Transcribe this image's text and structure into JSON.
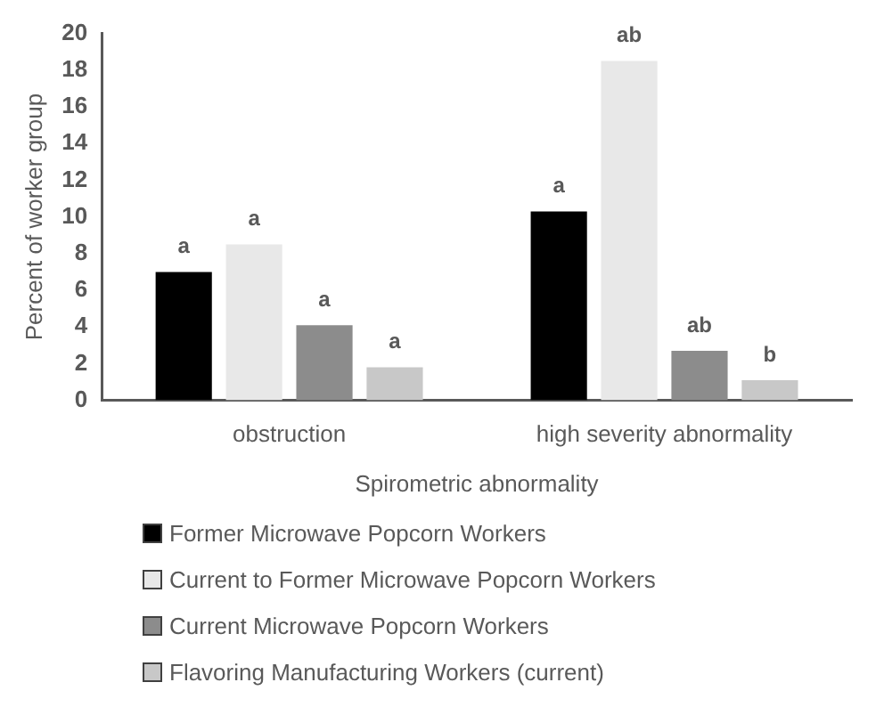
{
  "chart_data": {
    "type": "bar",
    "xlabel": "Spirometric abnormality",
    "ylabel": "Percent of worker group",
    "categories": [
      "obstruction",
      "high severity abnormality"
    ],
    "series": [
      {
        "name": "Former Microwave Popcorn Workers",
        "color": "#000000",
        "values": [
          7.0,
          10.3
        ],
        "value_labels": [
          "a",
          "a"
        ]
      },
      {
        "name": "Current to Former Microwave Popcorn Workers",
        "color": "#e8e8e8",
        "values": [
          8.5,
          18.5
        ],
        "value_labels": [
          "a",
          "ab"
        ]
      },
      {
        "name": "Current Microwave Popcorn Workers",
        "color": "#8c8c8c",
        "values": [
          4.1,
          2.7
        ],
        "value_labels": [
          "a",
          "ab"
        ]
      },
      {
        "name": "Flavoring Manufacturing Workers (current)",
        "color": "#c8c8c8",
        "values": [
          1.8,
          1.1
        ],
        "value_labels": [
          "a",
          "b"
        ]
      }
    ],
    "ylim": [
      0,
      20
    ],
    "yticks": [
      0,
      2,
      4,
      6,
      8,
      10,
      12,
      14,
      16,
      18,
      20
    ],
    "grid": false,
    "legend": "bottom"
  }
}
